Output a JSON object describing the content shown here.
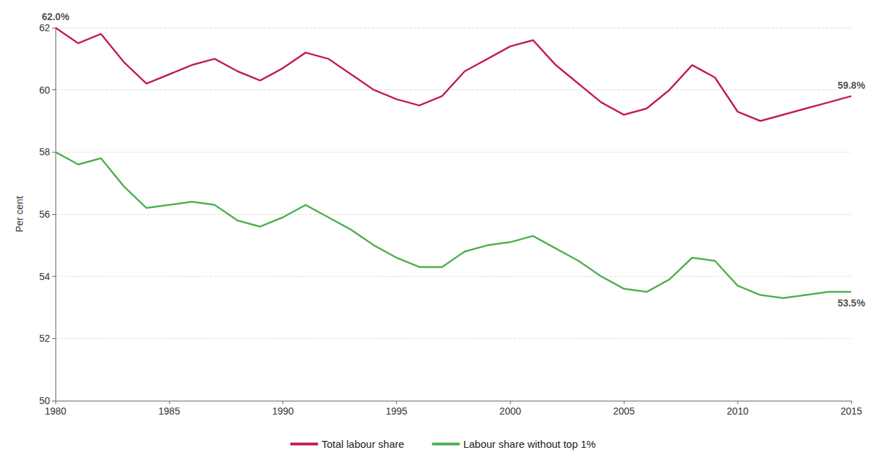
{
  "chart_data": {
    "type": "line",
    "y_label": "Per cent",
    "x": [
      1980,
      1981,
      1982,
      1983,
      1984,
      1985,
      1986,
      1987,
      1988,
      1989,
      1990,
      1991,
      1992,
      1993,
      1994,
      1995,
      1996,
      1997,
      1998,
      1999,
      2000,
      2001,
      2002,
      2003,
      2004,
      2005,
      2006,
      2007,
      2008,
      2009,
      2010,
      2011,
      2012,
      2013,
      2014,
      2015
    ],
    "series": [
      {
        "name": "Total labour share",
        "color": "#c2185b",
        "values": [
          62.0,
          61.5,
          61.8,
          60.9,
          60.2,
          60.5,
          60.8,
          61.0,
          60.6,
          60.3,
          60.7,
          61.2,
          61.0,
          60.5,
          60.0,
          59.7,
          59.5,
          59.8,
          60.6,
          61.0,
          61.4,
          61.6,
          60.8,
          60.2,
          59.6,
          59.2,
          59.4,
          60.0,
          60.8,
          60.4,
          59.3,
          59.0,
          59.2,
          59.4,
          59.6,
          59.8
        ]
      },
      {
        "name": "Labour share without top 1%",
        "color": "#4caf50",
        "values": [
          58.0,
          57.6,
          57.8,
          56.9,
          56.2,
          56.3,
          56.4,
          56.3,
          55.8,
          55.6,
          55.9,
          56.3,
          55.9,
          55.5,
          55.0,
          54.6,
          54.3,
          54.3,
          54.8,
          55.0,
          55.1,
          55.3,
          54.9,
          54.5,
          54.0,
          53.6,
          53.5,
          53.9,
          54.6,
          54.5,
          53.7,
          53.4,
          53.3,
          53.4,
          53.5,
          53.5
        ]
      }
    ],
    "annotations": [
      {
        "text": "62.0%",
        "x": 1980,
        "y": 62.0
      },
      {
        "text": "59.8%",
        "x": 2015,
        "y": 59.8
      },
      {
        "text": "53.5%",
        "x": 2015,
        "y": 53.5
      }
    ],
    "xlim": [
      1980,
      2015
    ],
    "xticks": [
      1980,
      1985,
      1990,
      1995,
      2000,
      2005,
      2010,
      2015
    ],
    "ylim": [
      50,
      62
    ],
    "yticks": [
      50,
      52,
      54,
      56,
      58,
      60,
      62
    ],
    "grid": true,
    "legend": "bottom"
  }
}
